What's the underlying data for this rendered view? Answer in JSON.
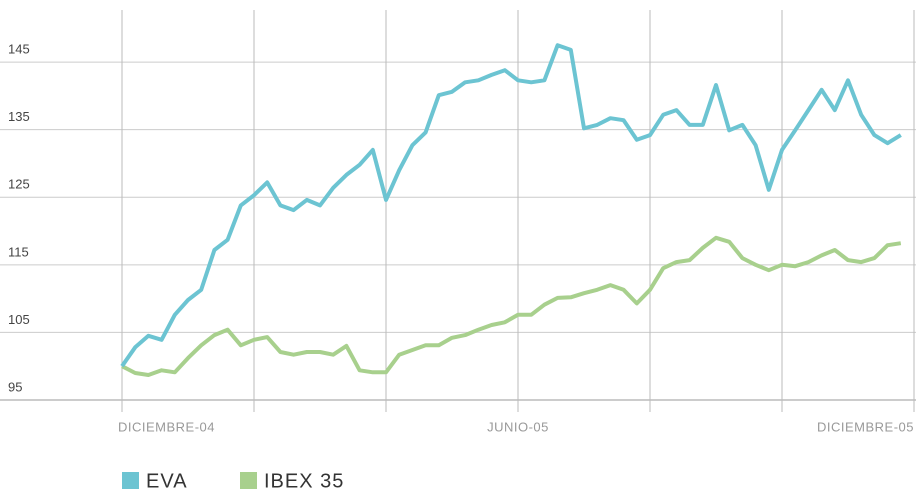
{
  "chart_data": {
    "type": "line",
    "x": [
      0,
      0.2,
      0.4,
      0.6,
      0.8,
      1,
      1.2,
      1.4,
      1.6,
      1.8,
      2,
      2.2,
      2.4,
      2.6,
      2.8,
      3,
      3.2,
      3.4,
      3.6,
      3.8,
      4,
      4.2,
      4.4,
      4.6,
      4.8,
      5,
      5.2,
      5.4,
      5.6,
      5.8,
      6,
      6.2,
      6.4,
      6.6,
      6.8,
      7,
      7.2,
      7.4,
      7.6,
      7.8,
      8,
      8.2,
      8.4,
      8.6,
      8.8,
      9,
      9.2,
      9.4,
      9.6,
      9.8,
      10,
      10.2,
      10.4,
      10.6,
      10.8,
      11,
      11.2,
      11.4,
      11.6,
      11.8
    ],
    "series": [
      {
        "name": "EVA",
        "color": "#6cc4d2",
        "values": [
          100,
          102.8,
          104.5,
          103.9,
          107.6,
          109.8,
          111.3,
          117.2,
          118.7,
          123.8,
          125.3,
          127.2,
          123.8,
          123.1,
          124.6,
          123.8,
          126.4,
          128.3,
          129.8,
          132,
          124.6,
          129,
          132.7,
          134.6,
          140.1,
          140.6,
          142,
          142.3,
          143.1,
          143.8,
          142.3,
          142,
          142.3,
          147.5,
          146.8,
          135.2,
          135.7,
          136.7,
          136.4,
          133.5,
          134.2,
          137.2,
          137.9,
          135.7,
          135.7,
          141.6,
          134.9,
          135.7,
          132.7,
          126.1,
          132,
          134.9,
          137.9,
          140.9,
          137.9,
          142.3,
          137.2,
          134.2,
          133,
          134.2
        ]
      },
      {
        "name": "IBEX 35",
        "color": "#a8d08d",
        "values": [
          100,
          99,
          98.7,
          99.4,
          99.1,
          101.2,
          103.1,
          104.6,
          105.4,
          103.1,
          103.9,
          104.3,
          102.1,
          101.7,
          102.1,
          102.1,
          101.7,
          103,
          99.4,
          99.1,
          99.1,
          101.7,
          102.4,
          103.1,
          103.1,
          104.2,
          104.6,
          105.4,
          106.1,
          106.5,
          107.6,
          107.6,
          109.1,
          110.1,
          110.2,
          110.8,
          111.3,
          112,
          111.3,
          109.3,
          111.3,
          114.5,
          115.4,
          115.7,
          117.5,
          119,
          118.4,
          116,
          115,
          114.2,
          115,
          114.8,
          115.4,
          116.4,
          117.2,
          115.7,
          115.4,
          116,
          117.9,
          118.2
        ]
      }
    ],
    "xlim": [
      0,
      12
    ],
    "xticks": [
      {
        "value": 0,
        "label": "DICIEMBRE-04"
      },
      {
        "value": 6,
        "label": "JUNIO-05"
      },
      {
        "value": 12,
        "label": "DICIEMBRE-05"
      }
    ],
    "xgrid": [
      2,
      4,
      8,
      10
    ],
    "ylim": [
      95,
      153
    ],
    "yticks": [
      95,
      105,
      115,
      125,
      135,
      145
    ],
    "grid": true
  }
}
